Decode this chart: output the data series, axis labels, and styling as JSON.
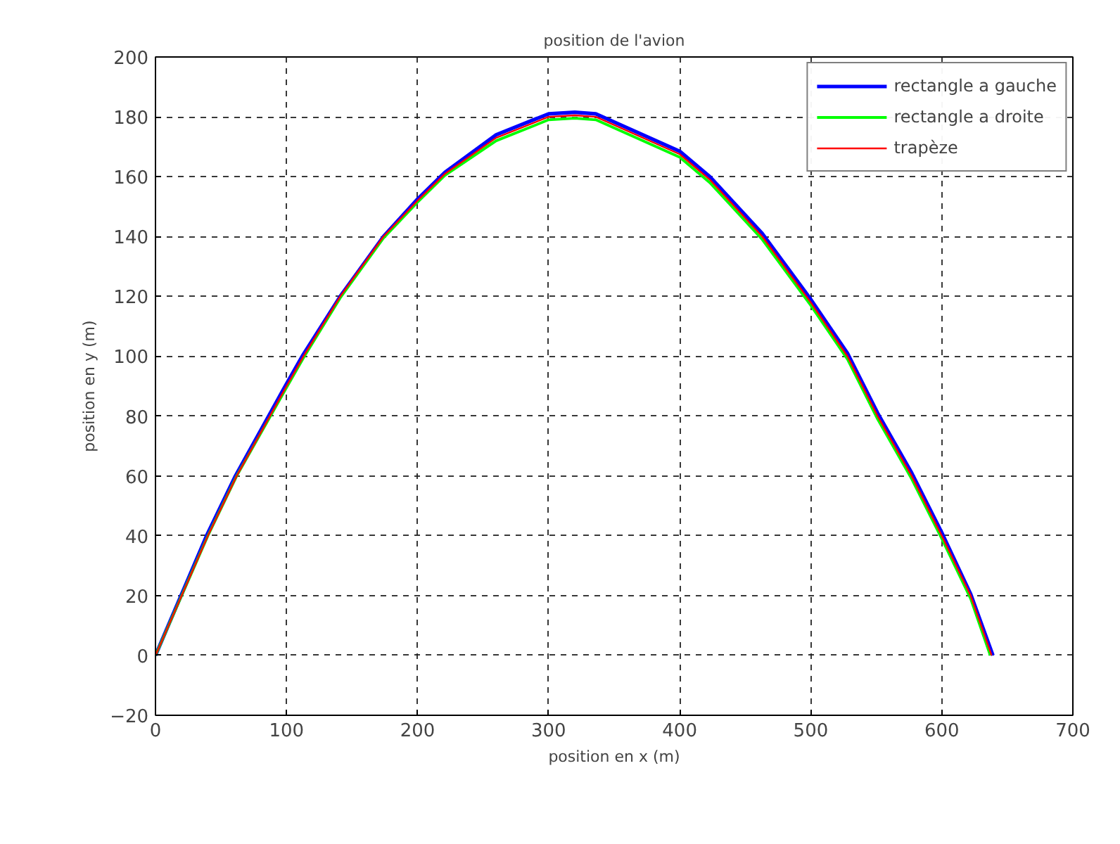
{
  "chart_data": {
    "type": "line",
    "title": "position de l'avion",
    "xlabel": "position en x (m)",
    "ylabel": "position en y (m)",
    "xlim": [
      0,
      700
    ],
    "ylim": [
      -20,
      200
    ],
    "xticks": [
      0,
      100,
      200,
      300,
      400,
      500,
      600,
      700
    ],
    "yticks": [
      -20,
      0,
      20,
      40,
      60,
      80,
      100,
      120,
      140,
      160,
      180,
      200
    ],
    "grid": true,
    "legend": "top right",
    "line_style": "solid",
    "series": [
      {
        "name": "rectangle a gauche",
        "color": "#0000ff",
        "x": [
          0,
          39,
          61,
          99,
          112,
          141,
          174,
          200,
          221,
          260,
          300,
          320,
          336,
          400,
          423,
          463,
          500,
          528,
          551,
          577,
          600,
          622,
          639
        ],
        "values": [
          0,
          40,
          60,
          90,
          100,
          120,
          140,
          152.5,
          161.5,
          174,
          181,
          181.5,
          181,
          168.5,
          160,
          141,
          119,
          101,
          81,
          61,
          41,
          20.5,
          0
        ]
      },
      {
        "name": "rectangle a droite",
        "color": "#00ff00",
        "x": [
          0,
          40,
          62,
          100,
          113,
          141,
          174,
          200,
          221,
          260,
          300,
          320,
          336,
          400,
          423,
          463,
          500,
          528,
          551,
          577,
          600,
          622,
          637
        ],
        "values": [
          0,
          40,
          60,
          89.5,
          99.5,
          119.5,
          139.5,
          151.5,
          160.5,
          172,
          179,
          179.5,
          179,
          166.5,
          158,
          139,
          117,
          99,
          79,
          59,
          39,
          19,
          0
        ]
      },
      {
        "name": "trapèze",
        "color": "#ff0000",
        "x": [
          0,
          40,
          62,
          100,
          113,
          141,
          174,
          200,
          221,
          260,
          300,
          320,
          336,
          400,
          423,
          463,
          500,
          528,
          551,
          577,
          600,
          622,
          638
        ],
        "values": [
          0,
          40,
          60,
          90,
          100,
          120,
          140,
          152,
          161,
          173,
          180,
          180.5,
          180,
          167.5,
          159,
          140,
          118,
          100,
          80,
          60,
          40,
          20,
          0
        ]
      }
    ]
  }
}
